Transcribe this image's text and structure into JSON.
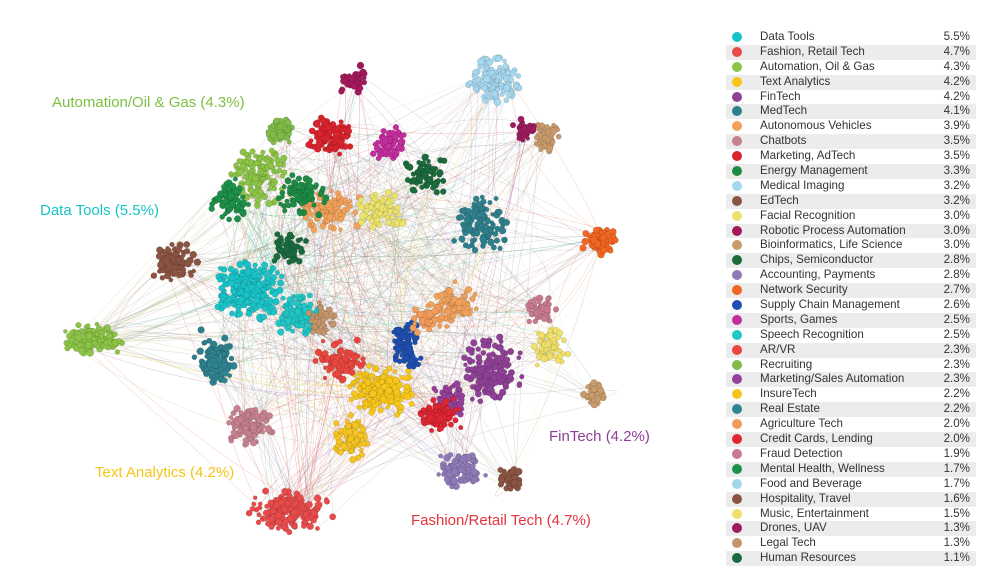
{
  "annotations": [
    {
      "key": "automation",
      "text": "Automation/Oil & Gas (4.3%)",
      "color": "#7cc043"
    },
    {
      "key": "data_tools",
      "text": "Data Tools (5.5%)",
      "color": "#19c3c7"
    },
    {
      "key": "text_analytics",
      "text": "Text Analytics (4.2%)",
      "color": "#f5c518"
    },
    {
      "key": "fintech",
      "text": "FinTech (4.2%)",
      "color": "#8e3f95"
    },
    {
      "key": "fashion",
      "text": "Fashion/Retail Tech (4.7%)",
      "color": "#e5333f"
    }
  ],
  "legend": [
    {
      "name": "Data Tools",
      "pct": "5.5%",
      "color": "#19c3c7"
    },
    {
      "name": "Fashion, Retail Tech",
      "pct": "4.7%",
      "color": "#e94b4b"
    },
    {
      "name": "Automation, Oil & Gas",
      "pct": "4.3%",
      "color": "#8cc447"
    },
    {
      "name": "Text Analytics",
      "pct": "4.2%",
      "color": "#f7c619"
    },
    {
      "name": "FinTech",
      "pct": "4.2%",
      "color": "#8e4195"
    },
    {
      "name": "MedTech",
      "pct": "4.1%",
      "color": "#2e7f8c"
    },
    {
      "name": "Autonomous Vehicles",
      "pct": "3.9%",
      "color": "#f2a15a"
    },
    {
      "name": "Chatbots",
      "pct": "3.5%",
      "color": "#c6818f"
    },
    {
      "name": "Marketing, AdTech",
      "pct": "3.5%",
      "color": "#d9232c"
    },
    {
      "name": "Energy Management",
      "pct": "3.3%",
      "color": "#1e8b45"
    },
    {
      "name": "Medical Imaging",
      "pct": "3.2%",
      "color": "#a5d7ee"
    },
    {
      "name": "EdTech",
      "pct": "3.2%",
      "color": "#8b5442"
    },
    {
      "name": "Facial Recognition",
      "pct": "3.0%",
      "color": "#ebe36c"
    },
    {
      "name": "Robotic Process Automation",
      "pct": "3.0%",
      "color": "#a3195b"
    },
    {
      "name": "Bioinformatics, Life Science",
      "pct": "3.0%",
      "color": "#c99b6c"
    },
    {
      "name": "Chips, Semiconductor",
      "pct": "2.8%",
      "color": "#1c6b3c"
    },
    {
      "name": "Accounting, Payments",
      "pct": "2.8%",
      "color": "#8e7ab7"
    },
    {
      "name": "Network Security",
      "pct": "2.7%",
      "color": "#f26522"
    },
    {
      "name": "Supply Chain Management",
      "pct": "2.6%",
      "color": "#1f4fae"
    },
    {
      "name": "Sports, Games",
      "pct": "2.5%",
      "color": "#c42d9c"
    },
    {
      "name": "Speech Recognition",
      "pct": "2.5%",
      "color": "#21c6c6"
    },
    {
      "name": "AR/VR",
      "pct": "2.3%",
      "color": "#e9463f"
    },
    {
      "name": "Recruiting",
      "pct": "2.3%",
      "color": "#81bb4a"
    },
    {
      "name": "Marketing/Sales Automation",
      "pct": "2.3%",
      "color": "#95419b"
    },
    {
      "name": "InsureTech",
      "pct": "2.2%",
      "color": "#f6c422"
    },
    {
      "name": "Real Estate",
      "pct": "2.2%",
      "color": "#2f8491"
    },
    {
      "name": "Agriculture Tech",
      "pct": "2.0%",
      "color": "#f29b5a"
    },
    {
      "name": "Credit Cards, Lending",
      "pct": "2.0%",
      "color": "#df2632"
    },
    {
      "name": "Fraud Detection",
      "pct": "1.9%",
      "color": "#c87a8f"
    },
    {
      "name": "Mental Health, Wellness",
      "pct": "1.7%",
      "color": "#1d9049"
    },
    {
      "name": "Food and Beverage",
      "pct": "1.7%",
      "color": "#a2d6ec"
    },
    {
      "name": "Hospitality, Travel",
      "pct": "1.6%",
      "color": "#8a5543"
    },
    {
      "name": "Music, Entertainment",
      "pct": "1.5%",
      "color": "#f0e06a"
    },
    {
      "name": "Drones, UAV",
      "pct": "1.3%",
      "color": "#9c1d5e"
    },
    {
      "name": "Legal Tech",
      "pct": "1.3%",
      "color": "#c4956a"
    },
    {
      "name": "Human Resources",
      "pct": "1.1%",
      "color": "#1b6a3e"
    }
  ]
}
